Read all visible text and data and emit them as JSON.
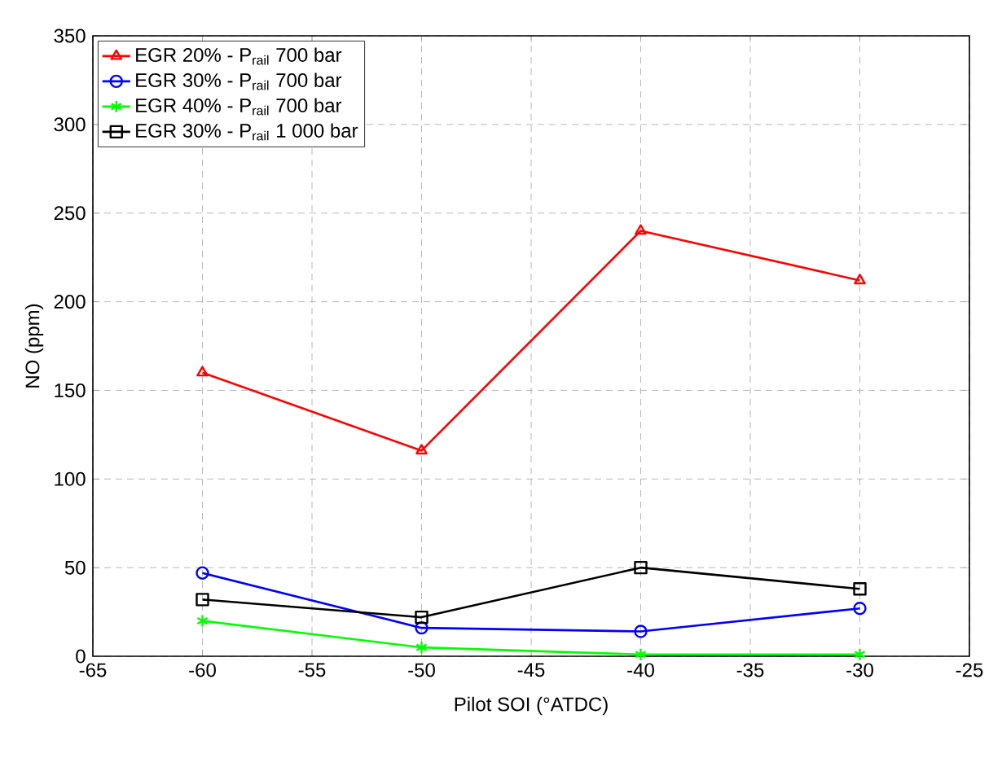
{
  "chart_data": {
    "type": "line",
    "xlabel": "Pilot SOI (°ATDC)",
    "ylabel": "NO (ppm)",
    "x": [
      -60,
      -50,
      -40,
      -30
    ],
    "series": [
      {
        "name": "EGR 20% - P$_{rail}$ 700 bar",
        "color": "#ff0000",
        "marker": "triangle",
        "values": [
          160,
          116,
          240,
          212
        ]
      },
      {
        "name": "EGR 30% - P$_{rail}$ 700 bar",
        "color": "#0000ff",
        "marker": "circle",
        "values": [
          47,
          16,
          14,
          27
        ]
      },
      {
        "name": "EGR 40% - P$_{rail}$ 700 bar",
        "color": "#00ff00",
        "marker": "cross",
        "values": [
          20,
          5,
          1,
          1
        ]
      },
      {
        "name": "EGR 30% - P$_{rail}$ 1 000 bar",
        "color": "#000000",
        "marker": "square",
        "values": [
          32,
          22,
          50,
          38
        ]
      }
    ],
    "xlim": [
      -65,
      -25
    ],
    "xticks": [
      -65,
      -60,
      -55,
      -50,
      -45,
      -40,
      -35,
      -30,
      -25
    ],
    "ylim": [
      0,
      350
    ],
    "yticks": [
      0,
      50,
      100,
      150,
      200,
      250,
      300,
      350
    ],
    "grid": true,
    "legend": "top left",
    "line_style": "solid"
  }
}
